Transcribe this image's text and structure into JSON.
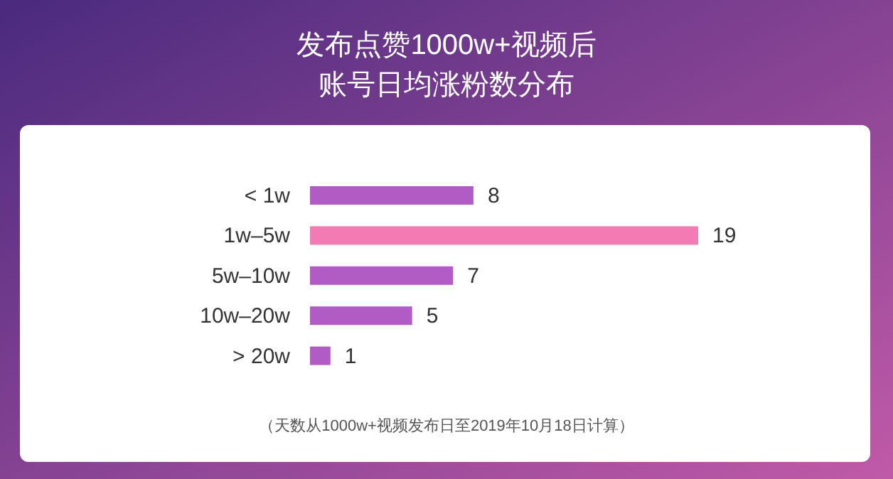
{
  "chart_data": {
    "type": "bar",
    "orientation": "horizontal",
    "title": "发布点赞1000w+视频后",
    "subtitle": "账号日均涨粉数分布",
    "categories": [
      "< 1w",
      "1w–5w",
      "5w–10w",
      "10w–20w",
      "> 20w"
    ],
    "values": [
      8,
      19,
      7,
      5,
      1
    ],
    "colors": [
      "#b05cc4",
      "#f27bb4",
      "#b05cc4",
      "#b05cc4",
      "#b05cc4"
    ],
    "data_labels": true,
    "annotations": [
      "（天数从1000w+视频发布日至2019年10月18日计算）"
    ]
  }
}
